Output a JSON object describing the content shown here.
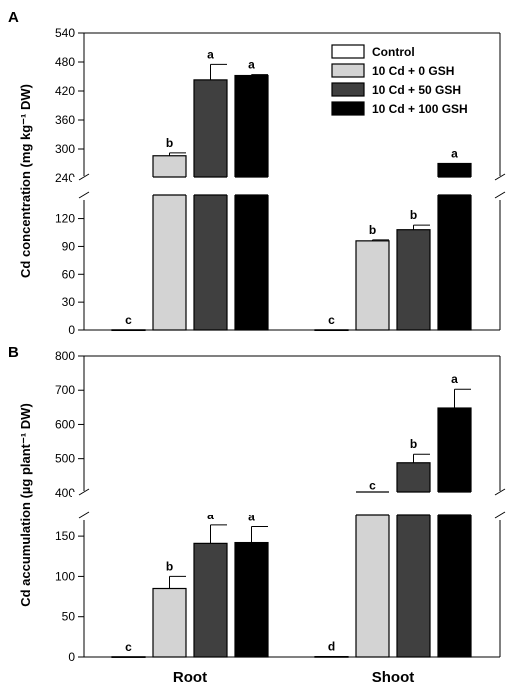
{
  "chart_data": [
    {
      "panel": "A",
      "type": "bar",
      "ylabel": "Cd concentration (mg kg⁻¹ DW)",
      "categories": [
        "Root",
        "Shoot"
      ],
      "axis_break": true,
      "lower_ylim": [
        0,
        140
      ],
      "lower_ticks": [
        "0",
        "30",
        "60",
        "90",
        "120"
      ],
      "upper_ylim": [
        240,
        540
      ],
      "upper_ticks": [
        "240",
        "300",
        "360",
        "420",
        "480",
        "540"
      ],
      "series": [
        {
          "name": "Control",
          "color": "#ffffff",
          "values": [
            0.2,
            0.2
          ],
          "errors": [
            0,
            0
          ],
          "letters": [
            "c",
            "c"
          ]
        },
        {
          "name": "10 Cd + 0 GSH",
          "color": "#d3d3d3",
          "values": [
            286,
            96
          ],
          "errors": [
            6,
            1
          ],
          "letters": [
            "b",
            "b"
          ]
        },
        {
          "name": "10 Cd + 50 GSH",
          "color": "#404040",
          "values": [
            443,
            108
          ],
          "errors": [
            32,
            5
          ],
          "letters": [
            "a",
            "b"
          ]
        },
        {
          "name": "10 Cd + 100 GSH",
          "color": "#000000",
          "values": [
            452,
            270
          ],
          "errors": [
            2,
            0
          ],
          "letters": [
            "a",
            "a"
          ]
        }
      ]
    },
    {
      "panel": "B",
      "type": "bar",
      "ylabel": "Cd accumulation (µg plant⁻¹ DW)",
      "categories": [
        "Root",
        "Shoot"
      ],
      "axis_break": true,
      "lower_ylim": [
        0,
        170
      ],
      "lower_ticks": [
        "0",
        "50",
        "100",
        "150"
      ],
      "upper_ylim": [
        350,
        800
      ],
      "upper_ticks": [
        "400",
        "500",
        "600",
        "700",
        "800"
      ],
      "series": [
        {
          "name": "Control",
          "color": "#ffffff",
          "values": [
            0.3,
            0.5
          ],
          "errors": [
            0,
            0
          ],
          "letters": [
            "c",
            "d"
          ]
        },
        {
          "name": "10 Cd + 0 GSH",
          "color": "#d3d3d3",
          "values": [
            85,
            380
          ],
          "errors": [
            15,
            12
          ],
          "letters": [
            "b",
            "c"
          ]
        },
        {
          "name": "10 Cd + 50 GSH",
          "color": "#404040",
          "values": [
            141,
            488
          ],
          "errors": [
            23,
            25
          ],
          "letters": [
            "a",
            "b"
          ]
        },
        {
          "name": "10 Cd + 100 GSH",
          "color": "#000000",
          "values": [
            142,
            648
          ],
          "errors": [
            20,
            55
          ],
          "letters": [
            "a",
            "a"
          ]
        }
      ]
    }
  ]
}
